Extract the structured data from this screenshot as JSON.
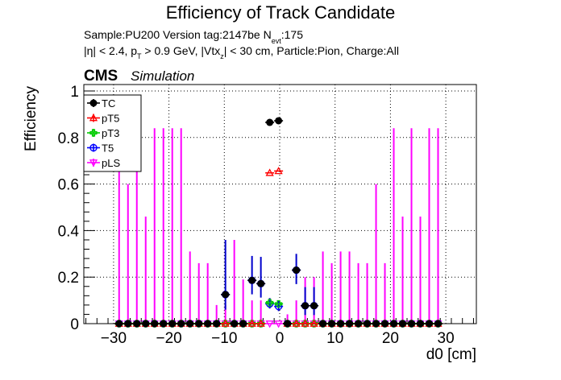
{
  "title": "Efficiency of Track Candidate",
  "info": {
    "sample": "Sample:PU200   Version tag:2147be  N",
    "nevt_sub": "evt",
    "nevt_value": ":175",
    "cuts": {
      "p1": "|η| < 2.4, p",
      "p1_sub": "T",
      "p2": " > 0.9 GeV, |Vtx",
      "p2_sub": "z",
      "p3": "| < 30 cm, Particle:Pion, Charge:All"
    }
  },
  "cms_label": "CMS",
  "simulation_label": "Simulation",
  "colors": {
    "TC": "#000000",
    "pT5": "#ff0000",
    "pT3": "#00cc00",
    "T5": "#0000ff",
    "pLS": "#ff00ff",
    "T5_error_bar": "#0000cc",
    "grid": "#000000"
  },
  "chart_data": {
    "type": "scatter",
    "title": "Efficiency of Track Candidate",
    "xlabel": "d0 [cm]",
    "ylabel": "Efficiency",
    "xlim": [
      -36,
      36
    ],
    "ylim": [
      0,
      1.03
    ],
    "xticks": [
      -30,
      -20,
      -10,
      0,
      10,
      20,
      30
    ],
    "yticks": [
      0,
      0.2,
      0.4,
      0.6,
      0.8,
      1
    ],
    "ytick_labels": [
      "0",
      "0.2",
      "0.4",
      "0.6",
      "0.8",
      "1"
    ],
    "grid": true,
    "legend_position": "top-left",
    "bin_width": 1.6,
    "x": [
      -29,
      -27.4,
      -25.8,
      -24.2,
      -22.6,
      -21,
      -19.4,
      -17.8,
      -16.2,
      -14.6,
      -13,
      -11.4,
      -9.8,
      -8.2,
      -6.6,
      -5,
      -3.4,
      -1.8,
      -0.2,
      1.4,
      3,
      4.6,
      6.2,
      7.8,
      9.4,
      11,
      12.6,
      14.2,
      15.8,
      17.4,
      19,
      20.6,
      22.2,
      23.8,
      25.4,
      27,
      28.6
    ],
    "series": [
      {
        "name": "TC",
        "marker": "filled-circle",
        "values": [
          0,
          0,
          0,
          0,
          0,
          0,
          0,
          0,
          0,
          0,
          0,
          0,
          0.125,
          0,
          0,
          0.186,
          0.172,
          0.865,
          0.872,
          0,
          0.23,
          0.077,
          0.077,
          0,
          0,
          0,
          0,
          0,
          0,
          0,
          0,
          0,
          0,
          0,
          0,
          0,
          0
        ]
      },
      {
        "name": "pT5",
        "marker": "open-triangle",
        "values": [
          0,
          0,
          0,
          0,
          0,
          0,
          0,
          0,
          0,
          0,
          0,
          0,
          0,
          0,
          0,
          0,
          0,
          0.648,
          0.656,
          0,
          0,
          0,
          0,
          0,
          0,
          0,
          0,
          0,
          0,
          0,
          0,
          0,
          0,
          0,
          0,
          0,
          0
        ]
      },
      {
        "name": "pT3",
        "marker": "open-cross",
        "values": [
          0,
          0,
          0,
          0,
          0,
          0,
          0,
          0,
          0,
          0,
          0,
          0,
          0,
          0,
          0,
          0,
          0,
          0.09,
          0.085,
          0,
          0,
          0,
          0,
          0,
          0,
          0,
          0,
          0,
          0,
          0,
          0,
          0,
          0,
          0,
          0,
          0,
          0
        ]
      },
      {
        "name": "T5",
        "marker": "open-circle",
        "values": [
          0,
          0,
          0,
          0,
          0,
          0,
          0,
          0,
          0,
          0,
          0,
          0,
          0.125,
          0,
          0,
          0.186,
          0.172,
          0.085,
          0.074,
          0,
          0.23,
          0.077,
          0.077,
          0,
          0,
          0,
          0,
          0,
          0,
          0,
          0,
          0,
          0,
          0,
          0,
          0,
          0
        ],
        "error_up": [
          0,
          0,
          0,
          0,
          0,
          0,
          0,
          0,
          0,
          0,
          0,
          0,
          0.235,
          0,
          0,
          0.105,
          0.115,
          0.025,
          0.025,
          0,
          0.07,
          0.08,
          0.08,
          0,
          0,
          0,
          0,
          0,
          0,
          0,
          0,
          0,
          0,
          0,
          0,
          0,
          0
        ],
        "error_down": [
          0,
          0,
          0,
          0,
          0,
          0,
          0,
          0,
          0,
          0,
          0,
          0,
          0.065,
          0,
          0,
          0.06,
          0.06,
          0.02,
          0.02,
          0,
          0.06,
          0.04,
          0.04,
          0,
          0,
          0,
          0,
          0,
          0,
          0,
          0,
          0,
          0,
          0,
          0,
          0,
          0
        ]
      },
      {
        "name": "pLS",
        "marker": "open-triangle-down",
        "values": [
          0,
          0,
          0,
          0,
          0,
          0,
          0,
          0,
          0,
          0,
          0,
          0,
          0,
          0,
          0,
          0,
          0,
          0,
          0,
          0,
          0,
          0,
          0,
          0,
          0,
          0,
          0,
          0,
          0,
          0,
          0,
          0,
          0,
          0,
          0,
          0,
          0
        ],
        "error_up": [
          0.84,
          0.6,
          0.84,
          0.46,
          0.84,
          0.84,
          0.84,
          0.84,
          0.31,
          0.26,
          0.26,
          0.08,
          0.08,
          0.36,
          0.19,
          0.1,
          0.1,
          0,
          0,
          0.04,
          0.1,
          0.2,
          0.2,
          0.31,
          0.26,
          0.31,
          0.31,
          0.26,
          0.26,
          0.6,
          0.26,
          0.84,
          0.46,
          0.84,
          0.46,
          0.84,
          0.84
        ]
      }
    ]
  }
}
